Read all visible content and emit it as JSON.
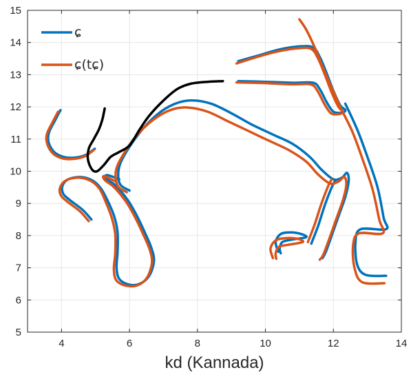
{
  "chart_data": {
    "type": "line",
    "title": "",
    "xlabel": "kd (Kannada)",
    "ylabel": "",
    "xlim": [
      3,
      14
    ],
    "ylim": [
      5,
      15
    ],
    "xticks": [
      4,
      6,
      8,
      10,
      12,
      14
    ],
    "yticks": [
      5,
      6,
      7,
      8,
      9,
      10,
      11,
      12,
      13,
      14,
      15
    ],
    "grid": true,
    "legend_position": "top-left",
    "legend": [
      {
        "label": "ɕ",
        "color": "#0072BD"
      },
      {
        "label": "ɕ(tɕ)",
        "color": "#D95319"
      }
    ],
    "series": [
      {
        "name": "ɕ",
        "color": "#0072BD",
        "segments": [
          [
            [
              3.97,
              11.9
            ],
            [
              3.82,
              11.6
            ],
            [
              3.63,
              11.2
            ],
            [
              3.62,
              10.9
            ],
            [
              3.78,
              10.6
            ],
            [
              4.05,
              10.45
            ],
            [
              4.35,
              10.42
            ],
            [
              4.7,
              10.5
            ],
            [
              4.98,
              10.7
            ]
          ],
          [
            [
              4.88,
              8.5
            ],
            [
              4.62,
              8.8
            ],
            [
              4.25,
              9.1
            ],
            [
              4.05,
              9.3
            ],
            [
              4.03,
              9.55
            ],
            [
              4.2,
              9.75
            ],
            [
              4.55,
              9.82
            ],
            [
              4.9,
              9.72
            ],
            [
              5.15,
              9.48
            ],
            [
              5.35,
              9.1
            ],
            [
              5.55,
              8.6
            ],
            [
              5.65,
              8.1
            ],
            [
              5.65,
              7.5
            ],
            [
              5.62,
              7.0
            ],
            [
              5.7,
              6.65
            ],
            [
              5.98,
              6.48
            ],
            [
              6.3,
              6.5
            ],
            [
              6.58,
              6.75
            ],
            [
              6.72,
              7.2
            ],
            [
              6.65,
              7.6
            ],
            [
              6.45,
              8.1
            ],
            [
              6.2,
              8.65
            ],
            [
              5.95,
              9.1
            ],
            [
              5.6,
              9.55
            ],
            [
              5.3,
              9.78
            ],
            [
              5.35,
              9.88
            ],
            [
              5.7,
              9.75
            ]
          ],
          [
            [
              6.0,
              9.4
            ],
            [
              5.72,
              9.6
            ],
            [
              5.68,
              10.05
            ],
            [
              5.85,
              10.5
            ],
            [
              6.3,
              11.2
            ],
            [
              6.8,
              11.75
            ],
            [
              7.3,
              12.08
            ],
            [
              7.8,
              12.2
            ],
            [
              8.4,
              12.1
            ],
            [
              9.0,
              11.8
            ],
            [
              9.6,
              11.45
            ],
            [
              10.2,
              11.15
            ],
            [
              10.8,
              10.85
            ],
            [
              11.3,
              10.45
            ],
            [
              11.65,
              10.05
            ],
            [
              12.0,
              9.75
            ],
            [
              12.25,
              9.8
            ],
            [
              12.4,
              9.95
            ],
            [
              12.45,
              9.7
            ],
            [
              12.35,
              9.2
            ],
            [
              12.15,
              8.6
            ],
            [
              11.95,
              8.0
            ],
            [
              11.78,
              7.5
            ],
            [
              11.68,
              7.3
            ]
          ],
          [
            [
              9.2,
              13.42
            ],
            [
              9.8,
              13.6
            ],
            [
              10.4,
              13.78
            ],
            [
              11.0,
              13.88
            ],
            [
              11.4,
              13.85
            ],
            [
              11.6,
              13.55
            ],
            [
              11.8,
              13.05
            ],
            [
              12.0,
              12.5
            ],
            [
              12.2,
              12.05
            ],
            [
              12.35,
              11.9
            ],
            [
              12.25,
              11.82
            ],
            [
              12.0,
              11.85
            ],
            [
              11.8,
              12.15
            ],
            [
              11.6,
              12.55
            ],
            [
              11.4,
              12.75
            ],
            [
              10.8,
              12.75
            ],
            [
              10.0,
              12.78
            ],
            [
              9.2,
              12.8
            ]
          ],
          [
            [
              12.35,
              12.1
            ],
            [
              12.7,
              11.3
            ],
            [
              13.0,
              10.45
            ],
            [
              13.3,
              9.5
            ],
            [
              13.48,
              8.55
            ],
            [
              13.55,
              8.2
            ],
            [
              12.8,
              8.2
            ],
            [
              12.65,
              7.8
            ],
            [
              12.7,
              7.1
            ],
            [
              12.95,
              6.78
            ],
            [
              13.55,
              6.75
            ]
          ],
          [
            [
              11.35,
              7.75
            ],
            [
              11.55,
              8.3
            ],
            [
              11.75,
              8.95
            ],
            [
              11.95,
              9.5
            ],
            [
              12.05,
              9.7
            ]
          ],
          [
            [
              10.38,
              7.5
            ],
            [
              10.3,
              7.8
            ],
            [
              10.45,
              8.05
            ],
            [
              10.75,
              8.1
            ],
            [
              11.05,
              8.05
            ],
            [
              11.2,
              7.95
            ],
            [
              10.8,
              7.88
            ],
            [
              10.5,
              7.8
            ],
            [
              10.42,
              7.6
            ],
            [
              10.45,
              7.45
            ]
          ]
        ]
      },
      {
        "name": "ɕ(tɕ)",
        "color": "#D95319",
        "segments": [
          [
            [
              3.9,
              11.85
            ],
            [
              3.75,
              11.55
            ],
            [
              3.57,
              11.15
            ],
            [
              3.58,
              10.85
            ],
            [
              3.75,
              10.55
            ],
            [
              4.02,
              10.4
            ],
            [
              4.32,
              10.38
            ],
            [
              4.68,
              10.46
            ],
            [
              4.95,
              10.66
            ]
          ],
          [
            [
              4.8,
              8.45
            ],
            [
              4.55,
              8.75
            ],
            [
              4.18,
              9.05
            ],
            [
              3.98,
              9.25
            ],
            [
              3.96,
              9.5
            ],
            [
              4.14,
              9.72
            ],
            [
              4.5,
              9.8
            ],
            [
              4.86,
              9.7
            ],
            [
              5.12,
              9.45
            ],
            [
              5.3,
              9.05
            ],
            [
              5.48,
              8.55
            ],
            [
              5.58,
              8.05
            ],
            [
              5.58,
              7.45
            ],
            [
              5.54,
              6.95
            ],
            [
              5.62,
              6.6
            ],
            [
              5.92,
              6.44
            ],
            [
              6.25,
              6.46
            ],
            [
              6.52,
              6.7
            ],
            [
              6.66,
              7.15
            ],
            [
              6.6,
              7.55
            ],
            [
              6.4,
              8.05
            ],
            [
              6.15,
              8.6
            ],
            [
              5.9,
              9.05
            ],
            [
              5.55,
              9.5
            ],
            [
              5.28,
              9.72
            ],
            [
              5.25,
              9.85
            ],
            [
              5.6,
              9.68
            ]
          ],
          [
            [
              5.92,
              9.35
            ],
            [
              5.65,
              9.55
            ],
            [
              5.6,
              10.0
            ],
            [
              5.78,
              10.45
            ],
            [
              6.2,
              11.1
            ],
            [
              6.7,
              11.6
            ],
            [
              7.2,
              11.9
            ],
            [
              7.7,
              11.98
            ],
            [
              8.3,
              11.85
            ],
            [
              8.9,
              11.55
            ],
            [
              9.5,
              11.25
            ],
            [
              10.1,
              10.95
            ],
            [
              10.7,
              10.65
            ],
            [
              11.2,
              10.3
            ],
            [
              11.55,
              9.9
            ],
            [
              11.9,
              9.62
            ],
            [
              12.15,
              9.68
            ],
            [
              12.32,
              9.82
            ],
            [
              12.38,
              9.58
            ],
            [
              12.28,
              9.1
            ],
            [
              12.08,
              8.5
            ],
            [
              11.88,
              7.9
            ],
            [
              11.7,
              7.4
            ],
            [
              11.6,
              7.25
            ]
          ],
          [
            [
              9.15,
              13.35
            ],
            [
              9.75,
              13.55
            ],
            [
              10.35,
              13.72
            ],
            [
              10.95,
              13.82
            ],
            [
              11.35,
              13.8
            ],
            [
              11.55,
              13.5
            ],
            [
              11.75,
              13.0
            ],
            [
              11.95,
              12.45
            ],
            [
              12.15,
              12.0
            ],
            [
              12.28,
              11.85
            ],
            [
              12.18,
              11.78
            ],
            [
              11.93,
              11.8
            ],
            [
              11.73,
              12.1
            ],
            [
              11.53,
              12.5
            ],
            [
              11.33,
              12.7
            ],
            [
              10.75,
              12.7
            ],
            [
              9.95,
              12.74
            ],
            [
              9.15,
              12.76
            ]
          ],
          [
            [
              11.0,
              14.72
            ],
            [
              11.2,
              14.4
            ],
            [
              11.45,
              13.85
            ],
            [
              11.7,
              13.2
            ],
            [
              11.95,
              12.6
            ],
            [
              12.2,
              12.0
            ],
            [
              12.55,
              11.25
            ],
            [
              12.85,
              10.4
            ],
            [
              13.15,
              9.45
            ],
            [
              13.35,
              8.5
            ],
            [
              13.45,
              8.07
            ],
            [
              12.75,
              8.07
            ],
            [
              12.58,
              7.7
            ],
            [
              12.62,
              7.0
            ],
            [
              12.85,
              6.55
            ],
            [
              13.5,
              6.52
            ]
          ],
          [
            [
              11.25,
              7.8
            ],
            [
              11.45,
              8.35
            ],
            [
              11.65,
              9.0
            ],
            [
              11.85,
              9.55
            ],
            [
              11.95,
              9.75
            ]
          ],
          [
            [
              10.22,
              7.3
            ],
            [
              10.15,
              7.6
            ],
            [
              10.3,
              7.85
            ],
            [
              10.6,
              7.92
            ],
            [
              10.95,
              7.9
            ],
            [
              11.1,
              7.8
            ],
            [
              10.7,
              7.72
            ],
            [
              10.4,
              7.65
            ],
            [
              10.3,
              7.45
            ],
            [
              10.32,
              7.28
            ]
          ]
        ]
      },
      {
        "name": "",
        "color": "#000000",
        "segments": [
          [
            [
              5.27,
              11.95
            ],
            [
              5.2,
              11.6
            ],
            [
              5.1,
              11.3
            ],
            [
              4.95,
              11.0
            ],
            [
              4.8,
              10.7
            ],
            [
              4.78,
              10.35
            ],
            [
              4.9,
              10.05
            ],
            [
              5.05,
              10.0
            ],
            [
              5.25,
              10.2
            ],
            [
              5.45,
              10.45
            ],
            [
              5.7,
              10.6
            ],
            [
              6.0,
              10.8
            ],
            [
              6.3,
              11.3
            ],
            [
              6.6,
              11.75
            ],
            [
              7.0,
              12.2
            ],
            [
              7.4,
              12.55
            ],
            [
              7.8,
              12.72
            ],
            [
              8.3,
              12.78
            ],
            [
              8.75,
              12.8
            ]
          ]
        ]
      }
    ]
  }
}
